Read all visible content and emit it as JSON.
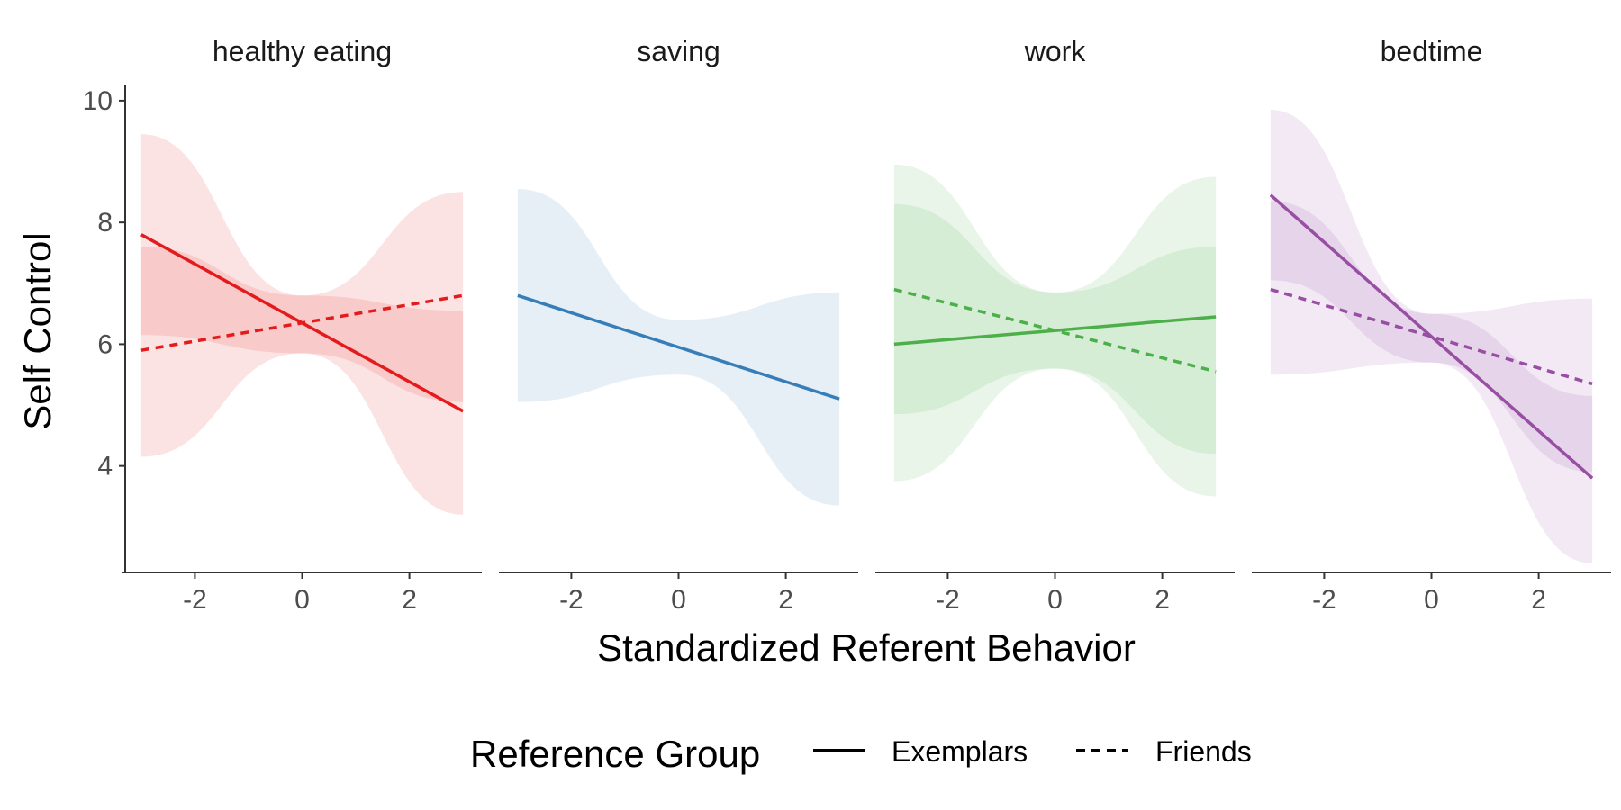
{
  "chart_data": {
    "type": "line",
    "facets": [
      "healthy eating",
      "saving",
      "work",
      "bedtime"
    ],
    "xlabel": "Standardized Referent Behavior",
    "ylabel": "Self Control",
    "xlim": [
      -3.3,
      3.3
    ],
    "ylim": [
      2.25,
      10.25
    ],
    "x_ticks": [
      -2,
      0,
      2
    ],
    "y_ticks": [
      4,
      6,
      8,
      10
    ],
    "grid": false,
    "legend": {
      "title": "Reference Group",
      "position": "bottom",
      "entries": [
        {
          "label": "Exemplars",
          "linetype": "solid"
        },
        {
          "label": "Friends",
          "linetype": "dashed"
        }
      ]
    },
    "series": [
      {
        "panel": "healthy eating",
        "group": "Exemplars",
        "color": "#E41A1C",
        "x": [
          -3,
          0,
          3
        ],
        "y": [
          7.8,
          6.3,
          4.9
        ],
        "lower": [
          4.15,
          5.85,
          3.2
        ],
        "upper": [
          9.45,
          6.8,
          6.55
        ]
      },
      {
        "panel": "healthy eating",
        "group": "Friends",
        "color": "#E41A1C",
        "x": [
          -3,
          0,
          3
        ],
        "y": [
          5.9,
          6.3,
          6.8
        ],
        "lower": [
          6.15,
          5.85,
          5.05
        ],
        "upper": [
          7.6,
          6.8,
          8.5
        ]
      },
      {
        "panel": "saving",
        "group": "Exemplars",
        "color": "#377EB8",
        "x": [
          -3,
          0,
          3
        ],
        "y": [
          6.8,
          5.95,
          5.1
        ],
        "lower": [
          5.05,
          5.5,
          3.35
        ],
        "upper": [
          8.55,
          6.4,
          6.85
        ]
      },
      {
        "panel": "work",
        "group": "Exemplars",
        "color": "#4DAF4A",
        "x": [
          -3,
          0,
          3
        ],
        "y": [
          6.0,
          6.22,
          6.45
        ],
        "lower": [
          4.85,
          5.6,
          4.2
        ],
        "upper": [
          8.3,
          6.85,
          7.6
        ]
      },
      {
        "panel": "work",
        "group": "Friends",
        "color": "#4DAF4A",
        "x": [
          -3,
          0,
          3
        ],
        "y": [
          6.9,
          6.22,
          5.55
        ],
        "lower": [
          3.75,
          5.6,
          3.5
        ],
        "upper": [
          8.95,
          6.85,
          8.75
        ]
      },
      {
        "panel": "bedtime",
        "group": "Exemplars",
        "color": "#984EA3",
        "x": [
          -3,
          0,
          3
        ],
        "y": [
          8.45,
          6.1,
          3.8
        ],
        "lower": [
          7.05,
          5.7,
          2.4
        ],
        "upper": [
          9.85,
          6.5,
          5.15
        ]
      },
      {
        "panel": "bedtime",
        "group": "Friends",
        "color": "#984EA3",
        "x": [
          -3,
          0,
          3
        ],
        "y": [
          6.9,
          6.1,
          5.35
        ],
        "lower": [
          5.5,
          5.7,
          3.9
        ],
        "upper": [
          8.35,
          6.5,
          6.75
        ]
      }
    ]
  }
}
